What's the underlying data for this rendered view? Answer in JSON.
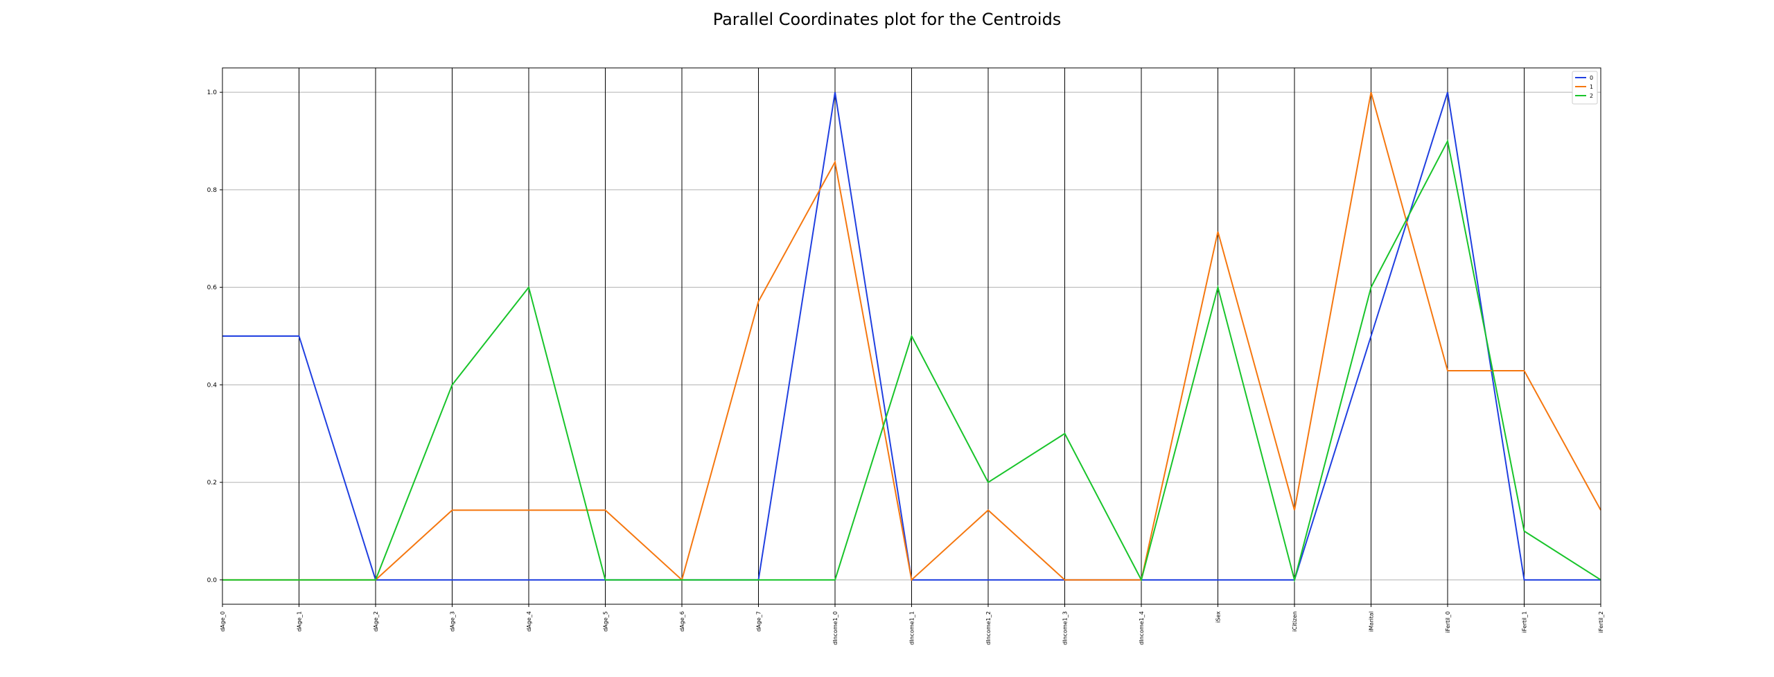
{
  "chart_data": {
    "type": "line",
    "title": "Parallel Coordinates plot for the Centroids",
    "xlabel": "",
    "ylabel": "",
    "categories": [
      "dAge_0",
      "dAge_1",
      "dAge_2",
      "dAge_3",
      "dAge_4",
      "dAge_5",
      "dAge_6",
      "dAge_7",
      "dIncome1_0",
      "dIncome1_1",
      "dIncome1_2",
      "dIncome1_3",
      "dIncome1_4",
      "iSex",
      "iCitizen",
      "iMarital",
      "iFertil_0",
      "iFertil_1",
      "iFertil_2"
    ],
    "ylim": [
      -0.05,
      1.05
    ],
    "yticks": [
      "0.0",
      "0.2",
      "0.4",
      "0.6",
      "0.8",
      "1.0"
    ],
    "grid": true,
    "legend_position": "top-right",
    "series": [
      {
        "name": "0",
        "color": "#1f3fe0",
        "values": [
          0.5,
          0.5,
          0.0,
          0.0,
          0.0,
          0.0,
          0.0,
          0.0,
          1.0,
          0.0,
          0.0,
          0.0,
          0.0,
          0.0,
          0.0,
          0.5,
          1.0,
          0.0,
          0.0
        ]
      },
      {
        "name": "1",
        "color": "#f5770f",
        "values": [
          0.0,
          0.0,
          0.0,
          0.143,
          0.143,
          0.143,
          0.0,
          0.571,
          0.857,
          0.0,
          0.143,
          0.0,
          0.0,
          0.714,
          0.143,
          1.0,
          0.429,
          0.429,
          0.143
        ]
      },
      {
        "name": "2",
        "color": "#18c42a",
        "values": [
          0.0,
          0.0,
          0.0,
          0.4,
          0.6,
          0.0,
          0.0,
          0.0,
          0.0,
          0.5,
          0.2,
          0.3,
          0.0,
          0.6,
          0.0,
          0.6,
          0.9,
          0.1,
          0.0
        ]
      }
    ]
  }
}
